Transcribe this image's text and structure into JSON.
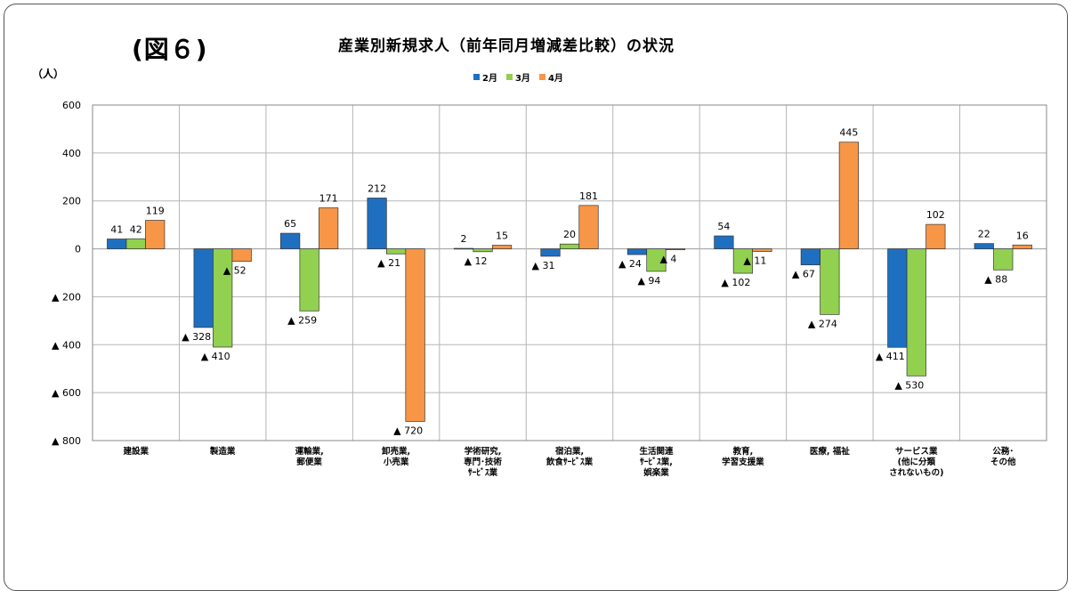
{
  "figure_label": "(図６)",
  "unit_label": "（人）",
  "chart_data": {
    "type": "bar",
    "title": "産業別新規求人（前年同月増減差比較）の状況",
    "categories": [
      [
        "建設業"
      ],
      [
        "製造業"
      ],
      [
        "運輸業,",
        "郵便業"
      ],
      [
        "卸売業,",
        "小売業"
      ],
      [
        "学術研究,",
        "専門･技術",
        "ｻｰﾋﾞｽ業"
      ],
      [
        "宿泊業,",
        "飲食ｻｰﾋﾞｽ業"
      ],
      [
        "生活関連",
        "ｻｰﾋﾞｽ業,",
        "娯楽業"
      ],
      [
        "教育,",
        "学習支援業"
      ],
      [
        "医療, 福祉"
      ],
      [
        "サービス業",
        "(他に分類",
        "されないもの)"
      ],
      [
        "公務･",
        "その他"
      ]
    ],
    "series": [
      {
        "name": "2月",
        "color": "#1F6FC0",
        "values": [
          41,
          -328,
          65,
          212,
          2,
          -31,
          -24,
          54,
          -67,
          -411,
          22
        ],
        "labels": [
          "41",
          "▲ 328",
          "65",
          "212",
          "2",
          "▲ 31",
          "▲ 24",
          "54",
          "▲ 67",
          "▲ 411",
          "22"
        ]
      },
      {
        "name": "3月",
        "color": "#92D050",
        "values": [
          42,
          -410,
          -259,
          -21,
          -12,
          20,
          -94,
          -102,
          -274,
          -530,
          -88
        ],
        "labels": [
          "42",
          "▲ 410",
          "▲ 259",
          "▲ 21",
          "▲ 12",
          "20",
          "▲ 94",
          "▲ 102",
          "▲ 274",
          "▲ 530",
          "▲ 88"
        ]
      },
      {
        "name": "4月",
        "color": "#F79646",
        "values": [
          119,
          -52,
          171,
          -720,
          15,
          181,
          -4,
          -11,
          445,
          102,
          16
        ],
        "labels": [
          "119",
          "▲ 52",
          "171",
          "▲ 720",
          "15",
          "181",
          "▲ 4",
          "▲ 11",
          "445",
          "102",
          "16"
        ]
      }
    ],
    "ylim": [
      -800,
      600
    ],
    "yticks": [
      600,
      400,
      200,
      0,
      -200,
      -400,
      -600,
      -800
    ],
    "ytick_labels": [
      "600",
      "400",
      "200",
      "0",
      "▲ 200",
      "▲ 400",
      "▲ 600",
      "▲ 800"
    ],
    "grid": true,
    "legend_position": "top-center"
  }
}
